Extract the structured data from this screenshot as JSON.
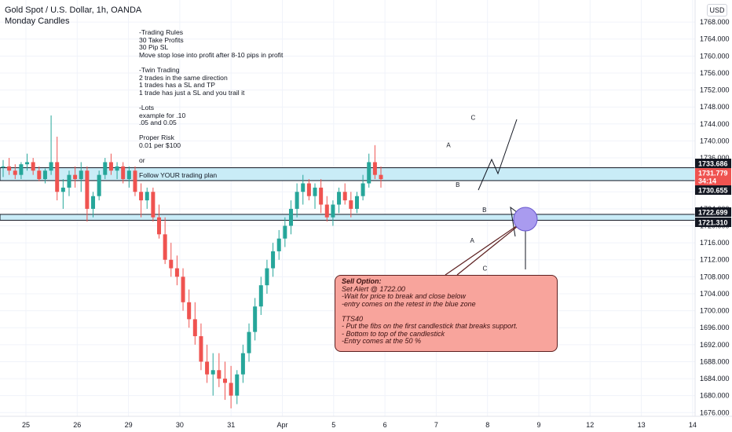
{
  "header": {
    "symbol": "Gold Spot / U.S. Dollar, 1h, OANDA",
    "indicator": "Monday Candles",
    "currency": "USD"
  },
  "notes_text": "-Trading Rules\n30 Take Profits\n30 Pip SL\nMove stop lose into profit after 8-10 pips in profit\n\n-Twin Trading\n2 trades in the same direction\n1 trades has a SL and TP\n1 trade has just a SL and you trail it\n\n-Lots\nexample for .10\n.05 and 0.05\n\nProper Risk\n0.01 per $100\n\nor\n\nFollow YOUR trading plan",
  "sell_box": {
    "title": "Sell Option:",
    "body": "\nSet Alert @ 1722.00\n-Wait for price to break and close below\n-entry comes on the retest in the blue zone\n\nTTS40\n- Put the fibs on the first candlestick that breaks support.\n- Bottom to top of the candlestick\n-Entry comes at the 50 %"
  },
  "chart_data": {
    "type": "candlestick",
    "y_axis_labels": [
      "1768.000",
      "1764.000",
      "1760.000",
      "1756.000",
      "1752.000",
      "1748.000",
      "1744.000",
      "1740.000",
      "1736.000",
      "1732.000",
      "1728.000",
      "1724.000",
      "1720.000",
      "1716.000",
      "1712.000",
      "1708.000",
      "1704.000",
      "1700.000",
      "1696.000",
      "1692.000",
      "1688.000",
      "1684.000",
      "1680.000",
      "1676.000"
    ],
    "ylim": [
      1675.5,
      1769.5
    ],
    "x_axis_labels": [
      "25",
      "26",
      "29",
      "30",
      "31",
      "Apr",
      "5",
      "6",
      "7",
      "8",
      "9",
      "12",
      "13",
      "14"
    ],
    "x_label_values": [
      0,
      1,
      2,
      3,
      4,
      5,
      6,
      7,
      8,
      9,
      10,
      11,
      12,
      13
    ],
    "price_labels": [
      {
        "text": "1733.686",
        "value": 1733.686,
        "style": "dark"
      },
      {
        "text": "1731.779",
        "value": 1731.779,
        "style": "red"
      },
      {
        "text": "34:14",
        "value": 1730.3,
        "style": "red"
      },
      {
        "text": "1730.655",
        "value": 1730.655,
        "style": "dark"
      },
      {
        "text": "1722.699",
        "value": 1722.699,
        "style": "dark"
      },
      {
        "text": "1721.310",
        "value": 1721.31,
        "style": "dark"
      }
    ],
    "zones": [
      {
        "top": 1733.686,
        "bottom": 1730.655,
        "color": "#c9ecf7"
      },
      {
        "top": 1722.699,
        "bottom": 1721.31,
        "color": "#c9ecf7"
      }
    ],
    "pattern_labels": [
      {
        "text": "C",
        "x": 8.72,
        "y": 1745.0
      },
      {
        "text": "A",
        "x": 8.24,
        "y": 1738.5
      },
      {
        "text": "B",
        "x": 8.42,
        "y": 1729.2
      },
      {
        "text": "B",
        "x": 8.94,
        "y": 1723.2
      },
      {
        "text": "A",
        "x": 8.7,
        "y": 1716.0
      },
      {
        "text": "C",
        "x": 8.95,
        "y": 1709.5
      }
    ],
    "candles": [
      [
        1734,
        1735.5,
        1731.5,
        1734
      ],
      [
        1734,
        1736,
        1732,
        1733
      ],
      [
        1733,
        1734.5,
        1731,
        1732
      ],
      [
        1732,
        1735,
        1731,
        1734.5
      ],
      [
        1734.5,
        1737,
        1733,
        1735
      ],
      [
        1735,
        1736,
        1732,
        1733
      ],
      [
        1733,
        1734,
        1730.5,
        1731
      ],
      [
        1731,
        1733.5,
        1730,
        1733
      ],
      [
        1733,
        1746,
        1732,
        1735
      ],
      [
        1735,
        1741,
        1726,
        1728
      ],
      [
        1728,
        1731,
        1724,
        1729
      ],
      [
        1729,
        1733,
        1727,
        1732
      ],
      [
        1732,
        1734,
        1729,
        1731
      ],
      [
        1731,
        1735,
        1728,
        1733
      ],
      [
        1733,
        1734,
        1721,
        1724
      ],
      [
        1724,
        1728,
        1722,
        1727
      ],
      [
        1727,
        1733,
        1726,
        1732
      ],
      [
        1732,
        1736,
        1731,
        1735
      ],
      [
        1735,
        1737,
        1732,
        1733
      ],
      [
        1733,
        1735,
        1731,
        1734
      ],
      [
        1734,
        1735,
        1730,
        1731
      ],
      [
        1731,
        1734,
        1729,
        1733
      ],
      [
        1733,
        1734,
        1727,
        1728
      ],
      [
        1728,
        1730,
        1722,
        1726
      ],
      [
        1726,
        1729,
        1724,
        1728
      ],
      [
        1728,
        1729,
        1721,
        1722
      ],
      [
        1722,
        1725,
        1717,
        1718
      ],
      [
        1718,
        1722,
        1711,
        1712
      ],
      [
        1712,
        1716,
        1708,
        1710
      ],
      [
        1710,
        1713,
        1706,
        1708
      ],
      [
        1708,
        1710,
        1700,
        1702
      ],
      [
        1702,
        1705,
        1696,
        1698
      ],
      [
        1698,
        1702,
        1692,
        1694
      ],
      [
        1694,
        1697,
        1686,
        1688
      ],
      [
        1688,
        1692,
        1683,
        1685
      ],
      [
        1685,
        1690,
        1680,
        1686
      ],
      [
        1686,
        1690,
        1682,
        1684
      ],
      [
        1684,
        1688,
        1679,
        1683
      ],
      [
        1683,
        1687,
        1677,
        1680
      ],
      [
        1680,
        1686,
        1678,
        1685
      ],
      [
        1685,
        1692,
        1683,
        1690
      ],
      [
        1690,
        1697,
        1688,
        1695
      ],
      [
        1695,
        1703,
        1693,
        1701
      ],
      [
        1701,
        1708,
        1699,
        1706
      ],
      [
        1706,
        1712,
        1704,
        1710
      ],
      [
        1710,
        1716,
        1708,
        1714
      ],
      [
        1714,
        1719,
        1712,
        1717
      ],
      [
        1717,
        1722,
        1715,
        1720
      ],
      [
        1720,
        1726,
        1718,
        1724
      ],
      [
        1724,
        1730,
        1722,
        1728
      ],
      [
        1728,
        1732,
        1725,
        1730
      ],
      [
        1730,
        1731,
        1726,
        1727
      ],
      [
        1727,
        1730,
        1724,
        1729
      ],
      [
        1729,
        1731,
        1723,
        1725
      ],
      [
        1725,
        1727,
        1721,
        1722
      ],
      [
        1722,
        1726,
        1720,
        1725
      ],
      [
        1725,
        1729,
        1723,
        1728
      ],
      [
        1728,
        1730,
        1725,
        1726
      ],
      [
        1726,
        1728,
        1722,
        1724
      ],
      [
        1724,
        1728,
        1723,
        1727
      ],
      [
        1727,
        1732,
        1726,
        1730
      ],
      [
        1730,
        1737,
        1729,
        1735
      ],
      [
        1735,
        1739,
        1731,
        1732
      ],
      [
        1732,
        1734,
        1729,
        1731
      ]
    ]
  }
}
